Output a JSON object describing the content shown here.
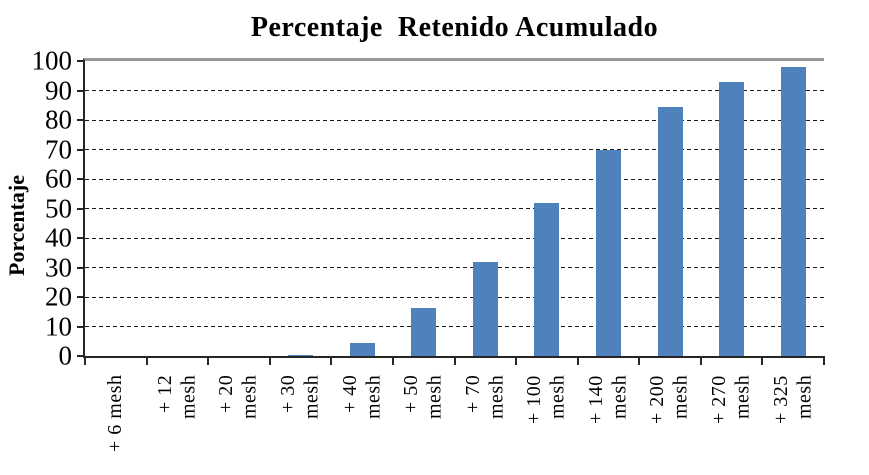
{
  "chart_data": {
    "type": "bar",
    "title": "Percentaje  Retenido Acumulado",
    "ylabel": "Porcentaje",
    "xlabel": "",
    "categories": [
      "+ 6 mesh",
      "+ 12 mesh",
      "+ 20 mesh",
      "+ 30 mesh",
      "+ 40 mesh",
      "+ 50 mesh",
      "+ 70 mesh",
      "+ 100 mesh",
      "+ 140 mesh",
      "+ 200 mesh",
      "+ 270 mesh",
      "+ 325 mesh"
    ],
    "category_label_lines": [
      [
        "+ 6 mesh"
      ],
      [
        "+ 12",
        "mesh"
      ],
      [
        "+ 20",
        "mesh"
      ],
      [
        "+ 30",
        "mesh"
      ],
      [
        "+ 40",
        "mesh"
      ],
      [
        "+ 50",
        "mesh"
      ],
      [
        "+ 70",
        "mesh"
      ],
      [
        "+ 100",
        "mesh"
      ],
      [
        "+ 140",
        "mesh"
      ],
      [
        "+ 200",
        "mesh"
      ],
      [
        "+ 270",
        "mesh"
      ],
      [
        "+ 325",
        "mesh"
      ]
    ],
    "values": [
      0,
      0,
      0,
      0.4,
      4.3,
      16.2,
      31.8,
      52,
      70,
      84.3,
      93,
      98
    ],
    "yticks": [
      0,
      10,
      20,
      30,
      40,
      50,
      60,
      70,
      80,
      90,
      100
    ],
    "ylim": [
      0,
      100
    ],
    "grid": "horizontal-dashed",
    "legend": "none",
    "colors": {
      "bar": "#4F81BD",
      "axis": "#262626",
      "gridline": "#1A1A1A",
      "plot_top_border": "#999999",
      "text": "#000000",
      "background": "#FFFFFF"
    }
  }
}
